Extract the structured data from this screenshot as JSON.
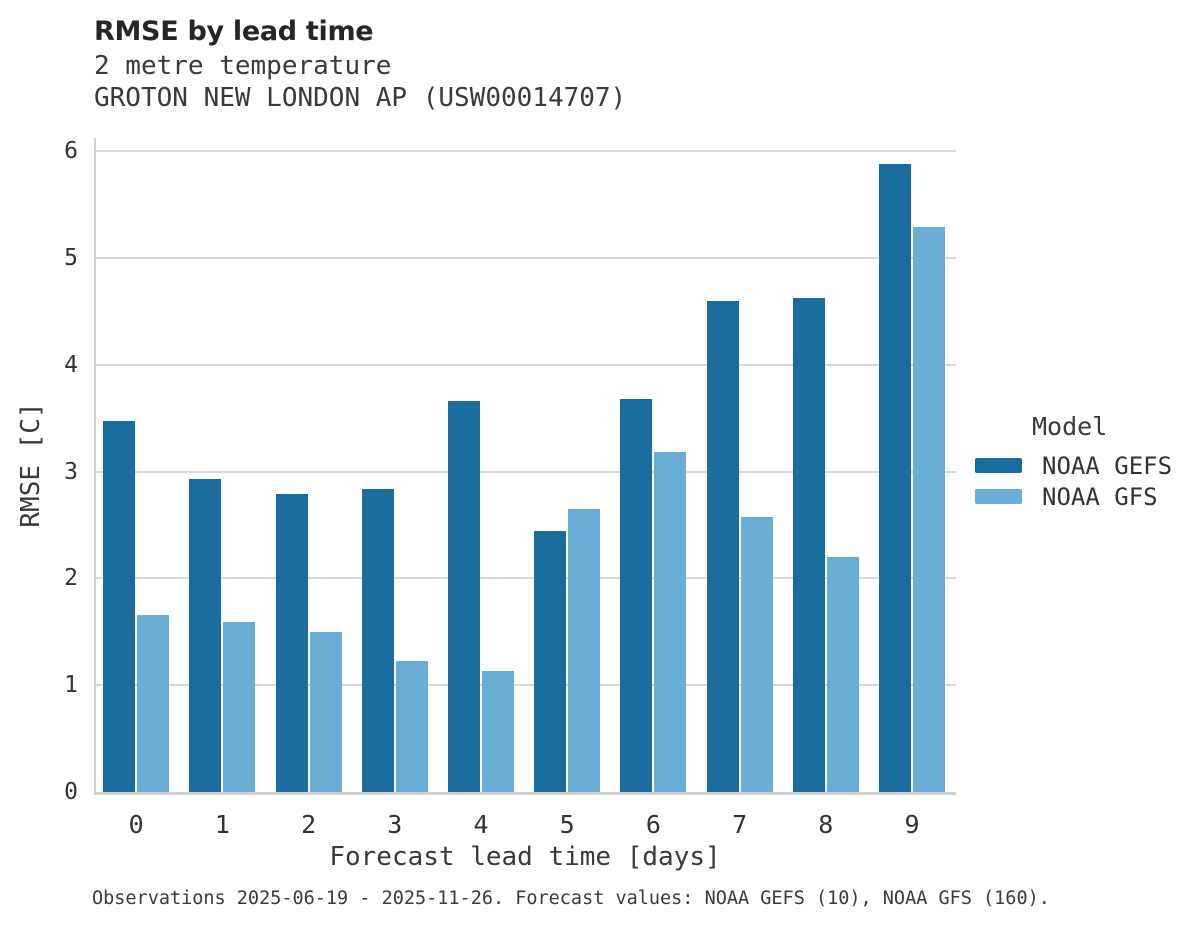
{
  "header": {
    "title": "RMSE by lead time",
    "subtitle_line1": "2 metre temperature",
    "subtitle_line2": "GROTON NEW LONDON AP (USW00014707)"
  },
  "legend": {
    "title": "Model",
    "entries": [
      {
        "label": "NOAA GEFS",
        "color": "#1a6b9e"
      },
      {
        "label": "NOAA GFS",
        "color": "#6aaed6"
      }
    ]
  },
  "footer": {
    "caption": "Observations 2025-06-19 - 2025-11-26. Forecast values: NOAA GEFS (10), NOAA GFS (160)."
  },
  "chart_data": {
    "type": "bar",
    "title": "RMSE by lead time",
    "subtitle": [
      "2 metre temperature",
      "GROTON NEW LONDON AP (USW00014707)"
    ],
    "xlabel": "Forecast lead time [days]",
    "ylabel": "RMSE [C]",
    "categories": [
      "0",
      "1",
      "2",
      "3",
      "4",
      "5",
      "6",
      "7",
      "8",
      "9"
    ],
    "series": [
      {
        "name": "NOAA GEFS",
        "color": "#1a6b9e",
        "values": [
          3.47,
          2.93,
          2.79,
          2.84,
          3.66,
          2.44,
          3.68,
          4.6,
          4.62,
          5.88
        ]
      },
      {
        "name": "NOAA GFS",
        "color": "#6aaed6",
        "values": [
          1.66,
          1.59,
          1.5,
          1.23,
          1.13,
          2.65,
          3.18,
          2.57,
          2.2,
          5.29
        ]
      }
    ],
    "ylim": [
      0,
      6
    ],
    "y_ticks": [
      0,
      1,
      2,
      3,
      4,
      5,
      6
    ],
    "grid": true,
    "legend_position": "right",
    "legend_title": "Model",
    "caption": "Observations 2025-06-19 - 2025-11-26. Forecast values: NOAA GEFS (10), NOAA GFS (160)."
  },
  "colors": {
    "background": "#ffffff",
    "gridline": "#d9d9d9",
    "axis": "#d0d0d0",
    "title_text": "#262626",
    "text": "#3a3a3a"
  }
}
